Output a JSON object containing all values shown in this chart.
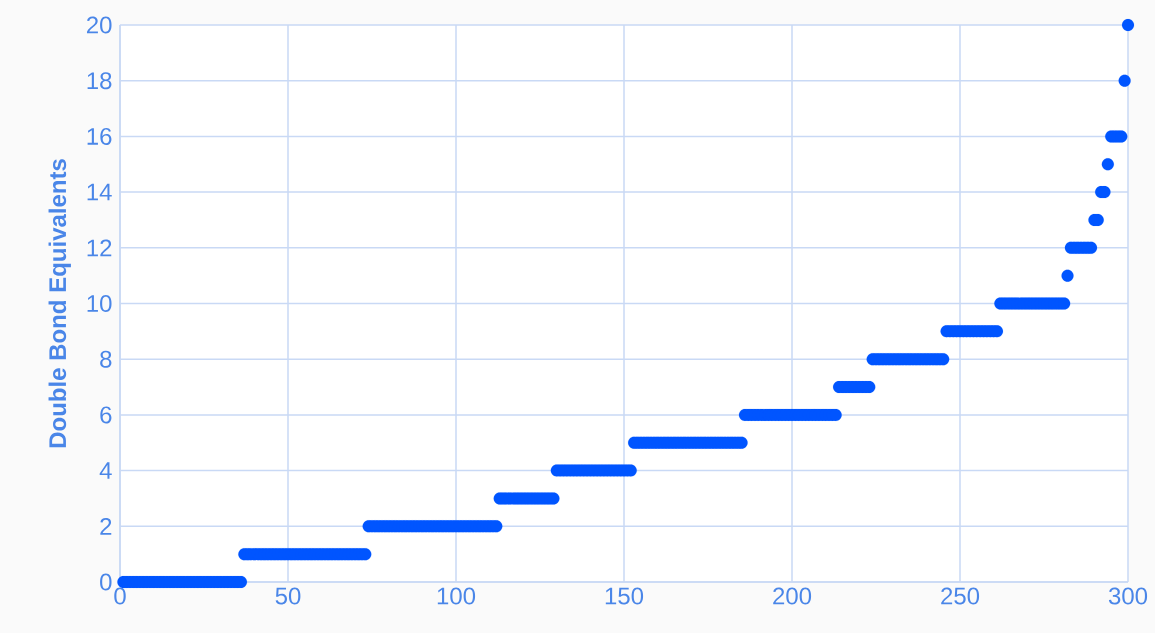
{
  "chart_data": {
    "type": "scatter",
    "ylabel": "Double Bond Equivalents",
    "color": "#0055ff",
    "marker": "circle",
    "grid": true,
    "xlim": [
      0,
      300
    ],
    "ylim": [
      0,
      20
    ],
    "xticks": [
      0,
      50,
      100,
      150,
      200,
      250,
      300
    ],
    "yticks": [
      0,
      2,
      4,
      6,
      8,
      10,
      12,
      14,
      16,
      18,
      20
    ],
    "x": [
      1,
      2,
      3,
      4,
      5,
      6,
      7,
      8,
      9,
      10,
      11,
      12,
      13,
      14,
      15,
      16,
      17,
      18,
      19,
      20,
      21,
      22,
      23,
      24,
      25,
      26,
      27,
      28,
      29,
      30,
      31,
      32,
      33,
      34,
      35,
      36,
      37,
      38,
      39,
      40,
      41,
      42,
      43,
      44,
      45,
      46,
      47,
      48,
      49,
      50,
      51,
      52,
      53,
      54,
      55,
      56,
      57,
      58,
      59,
      60,
      61,
      62,
      63,
      64,
      65,
      66,
      67,
      68,
      69,
      70,
      71,
      72,
      73,
      74,
      75,
      76,
      77,
      78,
      79,
      80,
      81,
      82,
      83,
      84,
      85,
      86,
      87,
      88,
      89,
      90,
      91,
      92,
      93,
      94,
      95,
      96,
      97,
      98,
      99,
      100,
      101,
      102,
      103,
      104,
      105,
      106,
      107,
      108,
      109,
      110,
      111,
      112,
      113,
      114,
      115,
      116,
      117,
      118,
      119,
      120,
      121,
      122,
      123,
      124,
      125,
      126,
      127,
      128,
      129,
      130,
      131,
      132,
      133,
      134,
      135,
      136,
      137,
      138,
      139,
      140,
      141,
      142,
      143,
      144,
      145,
      146,
      147,
      148,
      149,
      150,
      151,
      152,
      153,
      154,
      155,
      156,
      157,
      158,
      159,
      160,
      161,
      162,
      163,
      164,
      165,
      166,
      167,
      168,
      169,
      170,
      171,
      172,
      173,
      174,
      175,
      176,
      177,
      178,
      179,
      180,
      181,
      182,
      183,
      184,
      185,
      186,
      187,
      188,
      189,
      190,
      191,
      192,
      193,
      194,
      195,
      196,
      197,
      198,
      199,
      200,
      201,
      202,
      203,
      204,
      205,
      206,
      207,
      208,
      209,
      210,
      211,
      212,
      213,
      214,
      215,
      216,
      217,
      218,
      219,
      220,
      221,
      222,
      223,
      224,
      225,
      226,
      227,
      228,
      229,
      230,
      231,
      232,
      233,
      234,
      235,
      236,
      237,
      238,
      239,
      240,
      241,
      242,
      243,
      244,
      245,
      246,
      247,
      248,
      249,
      250,
      251,
      252,
      253,
      254,
      255,
      256,
      257,
      258,
      259,
      260,
      261,
      262,
      263,
      264,
      265,
      266,
      267,
      268,
      269,
      270,
      271,
      272,
      273,
      274,
      275,
      276,
      277,
      278,
      279,
      280,
      281,
      282,
      283,
      284,
      285,
      286,
      287,
      288,
      289,
      290,
      291,
      292,
      293,
      294,
      295,
      296,
      297,
      298,
      299,
      300
    ],
    "values": [
      0,
      0,
      0,
      0,
      0,
      0,
      0,
      0,
      0,
      0,
      0,
      0,
      0,
      0,
      0,
      0,
      0,
      0,
      0,
      0,
      0,
      0,
      0,
      0,
      0,
      0,
      0,
      0,
      0,
      0,
      0,
      0,
      0,
      0,
      0,
      0,
      1,
      1,
      1,
      1,
      1,
      1,
      1,
      1,
      1,
      1,
      1,
      1,
      1,
      1,
      1,
      1,
      1,
      1,
      1,
      1,
      1,
      1,
      1,
      1,
      1,
      1,
      1,
      1,
      1,
      1,
      1,
      1,
      1,
      1,
      1,
      1,
      1,
      2,
      2,
      2,
      2,
      2,
      2,
      2,
      2,
      2,
      2,
      2,
      2,
      2,
      2,
      2,
      2,
      2,
      2,
      2,
      2,
      2,
      2,
      2,
      2,
      2,
      2,
      2,
      2,
      2,
      2,
      2,
      2,
      2,
      2,
      2,
      2,
      2,
      2,
      2,
      3,
      3,
      3,
      3,
      3,
      3,
      3,
      3,
      3,
      3,
      3,
      3,
      3,
      3,
      3,
      3,
      3,
      4,
      4,
      4,
      4,
      4,
      4,
      4,
      4,
      4,
      4,
      4,
      4,
      4,
      4,
      4,
      4,
      4,
      4,
      4,
      4,
      4,
      4,
      4,
      5,
      5,
      5,
      5,
      5,
      5,
      5,
      5,
      5,
      5,
      5,
      5,
      5,
      5,
      5,
      5,
      5,
      5,
      5,
      5,
      5,
      5,
      5,
      5,
      5,
      5,
      5,
      5,
      5,
      5,
      5,
      5,
      5,
      6,
      6,
      6,
      6,
      6,
      6,
      6,
      6,
      6,
      6,
      6,
      6,
      6,
      6,
      6,
      6,
      6,
      6,
      6,
      6,
      6,
      6,
      6,
      6,
      6,
      6,
      6,
      6,
      7,
      7,
      7,
      7,
      7,
      7,
      7,
      7,
      7,
      7,
      8,
      8,
      8,
      8,
      8,
      8,
      8,
      8,
      8,
      8,
      8,
      8,
      8,
      8,
      8,
      8,
      8,
      8,
      8,
      8,
      8,
      8,
      9,
      9,
      9,
      9,
      9,
      9,
      9,
      9,
      9,
      9,
      9,
      9,
      9,
      9,
      9,
      9,
      10,
      10,
      10,
      10,
      10,
      10,
      10,
      10,
      10,
      10,
      10,
      10,
      10,
      10,
      10,
      10,
      10,
      10,
      10,
      10,
      11,
      12,
      12,
      12,
      12,
      12,
      12,
      12,
      13,
      13,
      14,
      14,
      15,
      16,
      16,
      16,
      16,
      18,
      20
    ]
  }
}
